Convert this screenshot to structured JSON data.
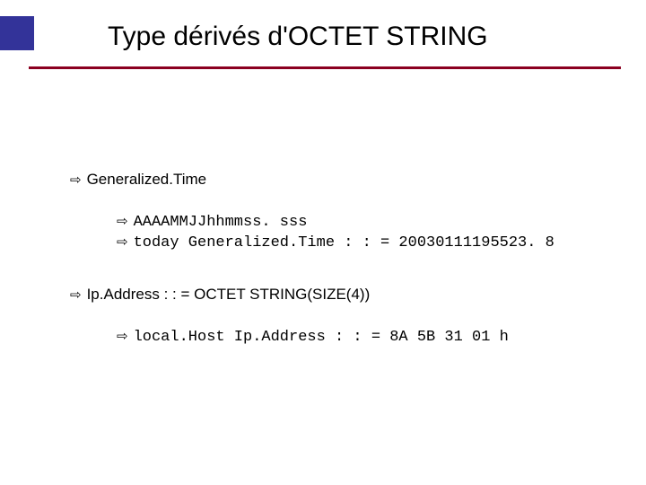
{
  "accent_color": "#333399",
  "rule_color": "#8b0020",
  "background_color": "#ffffff",
  "title": "Type dérivés d'OCTET STRING",
  "title_fontsize": 30,
  "body_fontsize": 17,
  "mono_font": "Courier New",
  "arrow_glyph": "⇨",
  "sections": [
    {
      "heading": "Generalized.Time",
      "items": [
        "AAAAMMJJhhmmss. sss",
        "today Generalized.Time : : = 20030111195523. 8"
      ]
    },
    {
      "heading": "Ip.Address : : = OCTET STRING(SIZE(4))",
      "items": [
        "local.Host Ip.Address : : = 8A 5B 31 01 h"
      ]
    }
  ]
}
